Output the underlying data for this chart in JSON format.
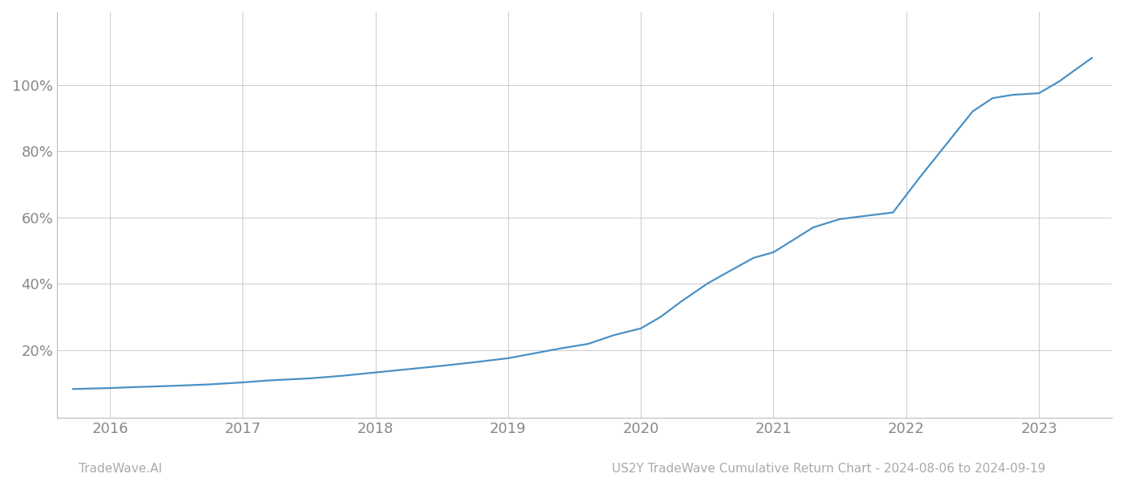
{
  "title": "",
  "footer_left": "TradeWave.AI",
  "footer_right": "US2Y TradeWave Cumulative Return Chart - 2024-08-06 to 2024-09-19",
  "line_color": "#4a90c4",
  "background_color": "#ffffff",
  "grid_color": "#cccccc",
  "axis_label_color": "#888888",
  "footer_color": "#aaaaaa",
  "xlim": [
    2015.6,
    2023.55
  ],
  "ylim": [
    -0.005,
    0.128
  ],
  "yticks": [
    0.2,
    0.4,
    0.6,
    0.8,
    1.0
  ],
  "xtick_labels": [
    "2016",
    "2017",
    "2018",
    "2019",
    "2020",
    "2021",
    "2022",
    "2023"
  ],
  "xtick_positions": [
    2016,
    2017,
    2018,
    2019,
    2020,
    2021,
    2022,
    2023
  ],
  "x_data": [
    2015.72,
    2016.0,
    2016.2,
    2016.5,
    2016.75,
    2017.0,
    2017.2,
    2017.5,
    2017.75,
    2018.0,
    2018.25,
    2018.5,
    2018.75,
    2019.0,
    2019.2,
    2019.4,
    2019.6,
    2019.8,
    2020.0,
    2020.15,
    2020.3,
    2020.5,
    2020.7,
    2020.85,
    2021.0,
    2021.1,
    2021.3,
    2021.5,
    2021.7,
    2021.9,
    2022.1,
    2022.3,
    2022.5,
    2022.65,
    2022.8,
    2023.0,
    2023.15,
    2023.4
  ],
  "y_data": [
    0.082,
    0.085,
    0.088,
    0.092,
    0.096,
    0.102,
    0.108,
    0.114,
    0.122,
    0.132,
    0.142,
    0.152,
    0.163,
    0.175,
    0.19,
    0.205,
    0.218,
    0.245,
    0.265,
    0.3,
    0.345,
    0.4,
    0.445,
    0.478,
    0.495,
    0.52,
    0.57,
    0.595,
    0.605,
    0.615,
    0.72,
    0.82,
    0.92,
    0.96,
    0.97,
    0.975,
    1.01,
    1.082
  ],
  "line_width": 1.6
}
